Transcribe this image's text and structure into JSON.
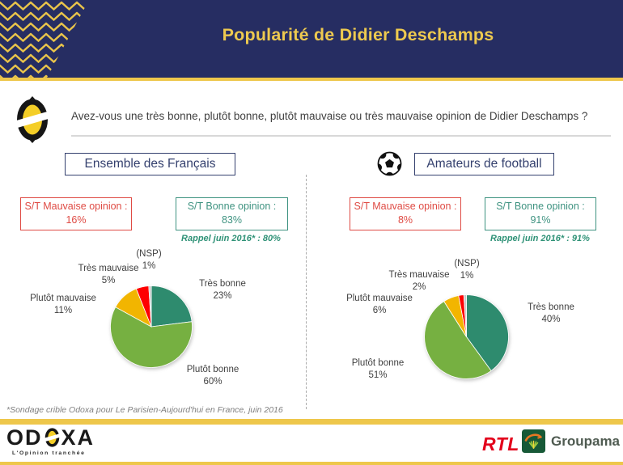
{
  "header": {
    "title": "Popularité de Didier Deschamps"
  },
  "question": "Avez-vous une très bonne, plutôt bonne, plutôt mauvaise ou très mauvaise opinion de Didier Deschamps ?",
  "panels": [
    {
      "title": "Ensemble des Français",
      "bad": {
        "label": "S/T Mauvaise opinion :",
        "value": "16%"
      },
      "good": {
        "label": "S/T Bonne opinion :",
        "value": "83%"
      },
      "recall": "Rappel juin 2016* : 80%"
    },
    {
      "title": "Amateurs de football",
      "bad": {
        "label": "S/T Mauvaise opinion :",
        "value": "8%"
      },
      "good": {
        "label": "S/T Bonne opinion :",
        "value": "91%"
      },
      "recall": "Rappel juin 2016* : 91%"
    }
  ],
  "chart_data": [
    {
      "type": "pie",
      "title": "Ensemble des Français",
      "categories": [
        "Très bonne",
        "Plutôt bonne",
        "Plutôt mauvaise",
        "Très mauvaise",
        "(NSP)"
      ],
      "values": [
        23,
        60,
        11,
        5,
        1
      ],
      "slices": [
        {
          "name": "Très bonne",
          "pct": "23%"
        },
        {
          "name": "Plutôt bonne",
          "pct": "60%"
        },
        {
          "name": "Plutôt mauvaise",
          "pct": "11%"
        },
        {
          "name": "Très mauvaise",
          "pct": "5%"
        },
        {
          "name": "(NSP)",
          "pct": "1%"
        }
      ],
      "colors": [
        "#2E8B6E",
        "#76B041",
        "#F2B500",
        "#FE0000",
        "#C8C8C8"
      ],
      "start_angle": -90,
      "direction": "clockwise",
      "legend": "labels-around-pie"
    },
    {
      "type": "pie",
      "title": "Amateurs de football",
      "categories": [
        "Très bonne",
        "Plutôt bonne",
        "Plutôt mauvaise",
        "Très mauvaise",
        "(NSP)"
      ],
      "values": [
        40,
        51,
        6,
        2,
        1
      ],
      "slices": [
        {
          "name": "Très bonne",
          "pct": "40%"
        },
        {
          "name": "Plutôt bonne",
          "pct": "51%"
        },
        {
          "name": "Plutôt mauvaise",
          "pct": "6%"
        },
        {
          "name": "Très mauvaise",
          "pct": "2%"
        },
        {
          "name": "(NSP)",
          "pct": "1%"
        }
      ],
      "colors": [
        "#2E8B6E",
        "#76B041",
        "#F2B500",
        "#FE0000",
        "#C8C8C8"
      ],
      "start_angle": -90,
      "direction": "clockwise",
      "legend": "labels-around-pie"
    }
  ],
  "footer": {
    "note": "*Sondage crible Odoxa pour Le Parisien-Aujourd'hui en France, juin 2016",
    "odoxa_wordmark": {
      "left": "OD",
      "right": "XA",
      "tagline": "L'Opinion tranchée"
    },
    "rtl_label": "RTL",
    "groupama_label": "Groupama"
  },
  "colors": {
    "navy": "#262D62",
    "gold": "#EEC74B",
    "title_gold": "#EDC94F",
    "bad_red": "#DF4B44",
    "good_teal": "#3F9381",
    "panel_border_navy": "#34406E",
    "body_text": "#3F3F3F",
    "note_gray": "#7F7F7F",
    "rtl_red": "#E3001B",
    "groupama_green": "#175937"
  }
}
